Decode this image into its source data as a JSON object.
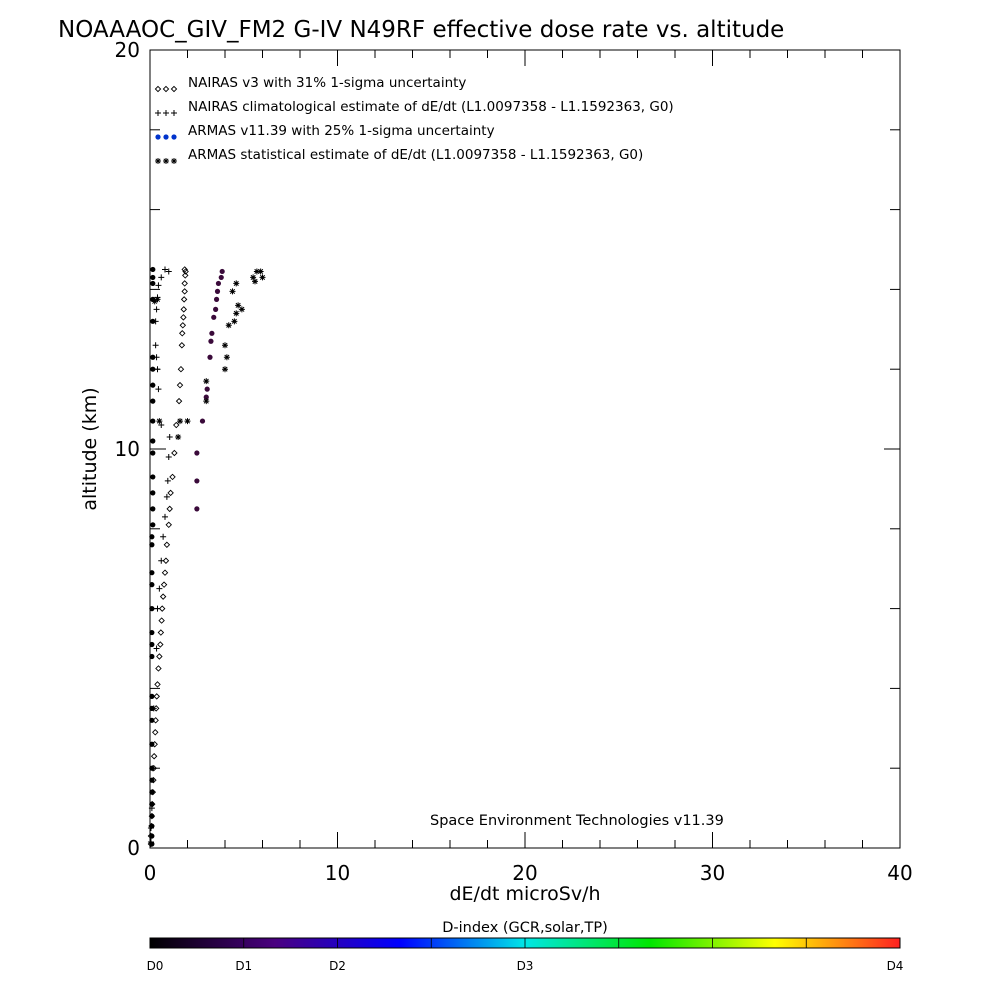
{
  "chart_data": {
    "type": "scatter",
    "title": "NOAAAOC_GIV_FM2 G-IV   N49RF  effective dose rate vs. altitude",
    "xlabel": "dE/dt microSv/h",
    "ylabel": "altitude (km)",
    "xlim": [
      0,
      40
    ],
    "ylim": [
      0,
      20
    ],
    "x_ticks": [
      0,
      10,
      20,
      30,
      40
    ],
    "y_ticks": [
      0,
      10,
      20
    ],
    "x_tick_labels": [
      "0",
      "10",
      "20",
      "30",
      "40"
    ],
    "y_tick_labels": [
      "0",
      "10",
      "20"
    ],
    "legend_position": "top-left",
    "annotation": "Space Environment Technologies v11.39",
    "series": [
      {
        "name": "NAIRAS v3 with 31% 1-sigma uncertainty",
        "marker": "diamond",
        "color": "#000000",
        "points": [
          [
            0.05,
            0.1
          ],
          [
            0.05,
            0.3
          ],
          [
            0.08,
            0.55
          ],
          [
            0.1,
            0.8
          ],
          [
            0.12,
            1.1
          ],
          [
            0.15,
            1.4
          ],
          [
            0.18,
            1.7
          ],
          [
            0.2,
            2.0
          ],
          [
            0.22,
            2.3
          ],
          [
            0.25,
            2.6
          ],
          [
            0.28,
            2.9
          ],
          [
            0.3,
            3.2
          ],
          [
            0.33,
            3.5
          ],
          [
            0.36,
            3.8
          ],
          [
            0.4,
            4.1
          ],
          [
            0.45,
            4.5
          ],
          [
            0.5,
            4.8
          ],
          [
            0.55,
            5.1
          ],
          [
            0.58,
            5.4
          ],
          [
            0.62,
            5.7
          ],
          [
            0.65,
            6.0
          ],
          [
            0.7,
            6.3
          ],
          [
            0.75,
            6.6
          ],
          [
            0.8,
            6.9
          ],
          [
            0.85,
            7.2
          ],
          [
            0.9,
            7.6
          ],
          [
            1.0,
            8.1
          ],
          [
            1.05,
            8.5
          ],
          [
            1.1,
            8.9
          ],
          [
            1.2,
            9.3
          ],
          [
            1.3,
            9.9
          ],
          [
            1.4,
            10.6
          ],
          [
            1.55,
            11.2
          ],
          [
            1.6,
            11.6
          ],
          [
            1.65,
            12.0
          ],
          [
            1.7,
            12.6
          ],
          [
            1.72,
            12.9
          ],
          [
            1.75,
            13.1
          ],
          [
            1.78,
            13.3
          ],
          [
            1.8,
            13.5
          ],
          [
            1.82,
            13.75
          ],
          [
            1.85,
            13.95
          ],
          [
            1.85,
            14.15
          ],
          [
            1.88,
            14.35
          ],
          [
            1.85,
            14.5
          ],
          [
            1.9,
            14.45
          ]
        ]
      },
      {
        "name": "NAIRAS climatological estimate of dE/dt (L1.0097358 - L1.1592363, G0)",
        "marker": "plus",
        "color": "#000000",
        "points": [
          [
            0.05,
            0.15
          ],
          [
            0.05,
            0.5
          ],
          [
            0.1,
            1.0
          ],
          [
            0.15,
            2.0
          ],
          [
            0.2,
            3.5
          ],
          [
            0.35,
            5.0
          ],
          [
            0.4,
            6.0
          ],
          [
            0.5,
            6.5
          ],
          [
            0.6,
            7.2
          ],
          [
            0.7,
            7.8
          ],
          [
            0.8,
            8.3
          ],
          [
            0.9,
            8.8
          ],
          [
            0.95,
            9.2
          ],
          [
            1.0,
            9.8
          ],
          [
            1.05,
            10.3
          ],
          [
            0.6,
            10.6
          ],
          [
            0.45,
            11.5
          ],
          [
            0.4,
            12.0
          ],
          [
            0.35,
            12.3
          ],
          [
            0.3,
            12.6
          ],
          [
            0.3,
            13.2
          ],
          [
            0.35,
            13.5
          ],
          [
            0.4,
            13.8
          ],
          [
            0.45,
            14.1
          ],
          [
            0.6,
            14.3
          ],
          [
            0.8,
            14.5
          ],
          [
            1.0,
            14.45
          ]
        ]
      },
      {
        "name": "ARMAS v11.39 with 25% 1-sigma uncertainty",
        "marker": "dot",
        "color": "#3a0a3a",
        "legend_color": "#0033cc",
        "points": [
          [
            2.5,
            8.5
          ],
          [
            2.5,
            9.2
          ],
          [
            2.5,
            9.9
          ],
          [
            2.8,
            10.7
          ],
          [
            3.0,
            11.3
          ],
          [
            3.05,
            11.5
          ],
          [
            3.2,
            12.3
          ],
          [
            3.25,
            12.7
          ],
          [
            3.3,
            12.9
          ],
          [
            3.4,
            13.3
          ],
          [
            3.5,
            13.5
          ],
          [
            3.55,
            13.75
          ],
          [
            3.6,
            13.95
          ],
          [
            3.65,
            14.15
          ],
          [
            3.8,
            14.3
          ],
          [
            3.85,
            14.45
          ]
        ]
      },
      {
        "name": "ARMAS statistical estimate of dE/dt (L1.0097358 - L1.1592363, G0)",
        "marker": "asterisk",
        "color": "#000000",
        "points": [
          [
            0.25,
            13.7
          ],
          [
            0.4,
            13.75
          ],
          [
            0.5,
            10.7
          ],
          [
            1.5,
            10.3
          ],
          [
            1.6,
            10.7
          ],
          [
            2.0,
            10.7
          ],
          [
            3.0,
            11.2
          ],
          [
            3.0,
            11.7
          ],
          [
            4.0,
            12.0
          ],
          [
            4.1,
            12.3
          ],
          [
            4.0,
            12.6
          ],
          [
            4.2,
            13.1
          ],
          [
            4.5,
            13.2
          ],
          [
            4.6,
            13.4
          ],
          [
            4.7,
            13.6
          ],
          [
            4.9,
            13.5
          ],
          [
            4.4,
            13.95
          ],
          [
            4.6,
            14.15
          ],
          [
            5.6,
            14.2
          ],
          [
            5.5,
            14.3
          ],
          [
            5.7,
            14.45
          ],
          [
            5.9,
            14.45
          ],
          [
            6.0,
            14.3
          ]
        ]
      },
      {
        "name": "",
        "marker": "dot",
        "color": "#000000",
        "points": [
          [
            0.1,
            0.1
          ],
          [
            0.1,
            0.3
          ],
          [
            0.1,
            0.55
          ],
          [
            0.1,
            0.8
          ],
          [
            0.1,
            1.1
          ],
          [
            0.1,
            1.4
          ],
          [
            0.1,
            1.7
          ],
          [
            0.1,
            2.0
          ],
          [
            0.1,
            2.6
          ],
          [
            0.1,
            3.2
          ],
          [
            0.1,
            3.5
          ],
          [
            0.1,
            3.8
          ],
          [
            0.1,
            4.8
          ],
          [
            0.1,
            5.1
          ],
          [
            0.1,
            5.4
          ],
          [
            0.1,
            6.0
          ],
          [
            0.1,
            6.6
          ],
          [
            0.1,
            6.9
          ],
          [
            0.1,
            7.6
          ],
          [
            0.1,
            7.8
          ],
          [
            0.15,
            8.1
          ],
          [
            0.15,
            8.5
          ],
          [
            0.15,
            8.9
          ],
          [
            0.15,
            9.3
          ],
          [
            0.15,
            9.9
          ],
          [
            0.15,
            10.2
          ],
          [
            0.15,
            10.7
          ],
          [
            0.15,
            11.2
          ],
          [
            0.15,
            11.6
          ],
          [
            0.15,
            12.0
          ],
          [
            0.15,
            12.3
          ],
          [
            0.15,
            13.2
          ],
          [
            0.15,
            13.75
          ],
          [
            0.15,
            14.15
          ],
          [
            0.15,
            14.3
          ],
          [
            0.15,
            14.5
          ]
        ]
      }
    ],
    "colorbar": {
      "title": "D-index (GCR,solar,TP)",
      "labels": [
        "D0",
        "D1",
        "D2",
        "D3",
        "D4"
      ],
      "label_positions": [
        0,
        0.125,
        0.25,
        0.5,
        1.0
      ],
      "colors": [
        "#000000",
        "#4a0080",
        "#0000ff",
        "#00e6e6",
        "#00e600",
        "#ffff00",
        "#ff2020"
      ]
    }
  }
}
